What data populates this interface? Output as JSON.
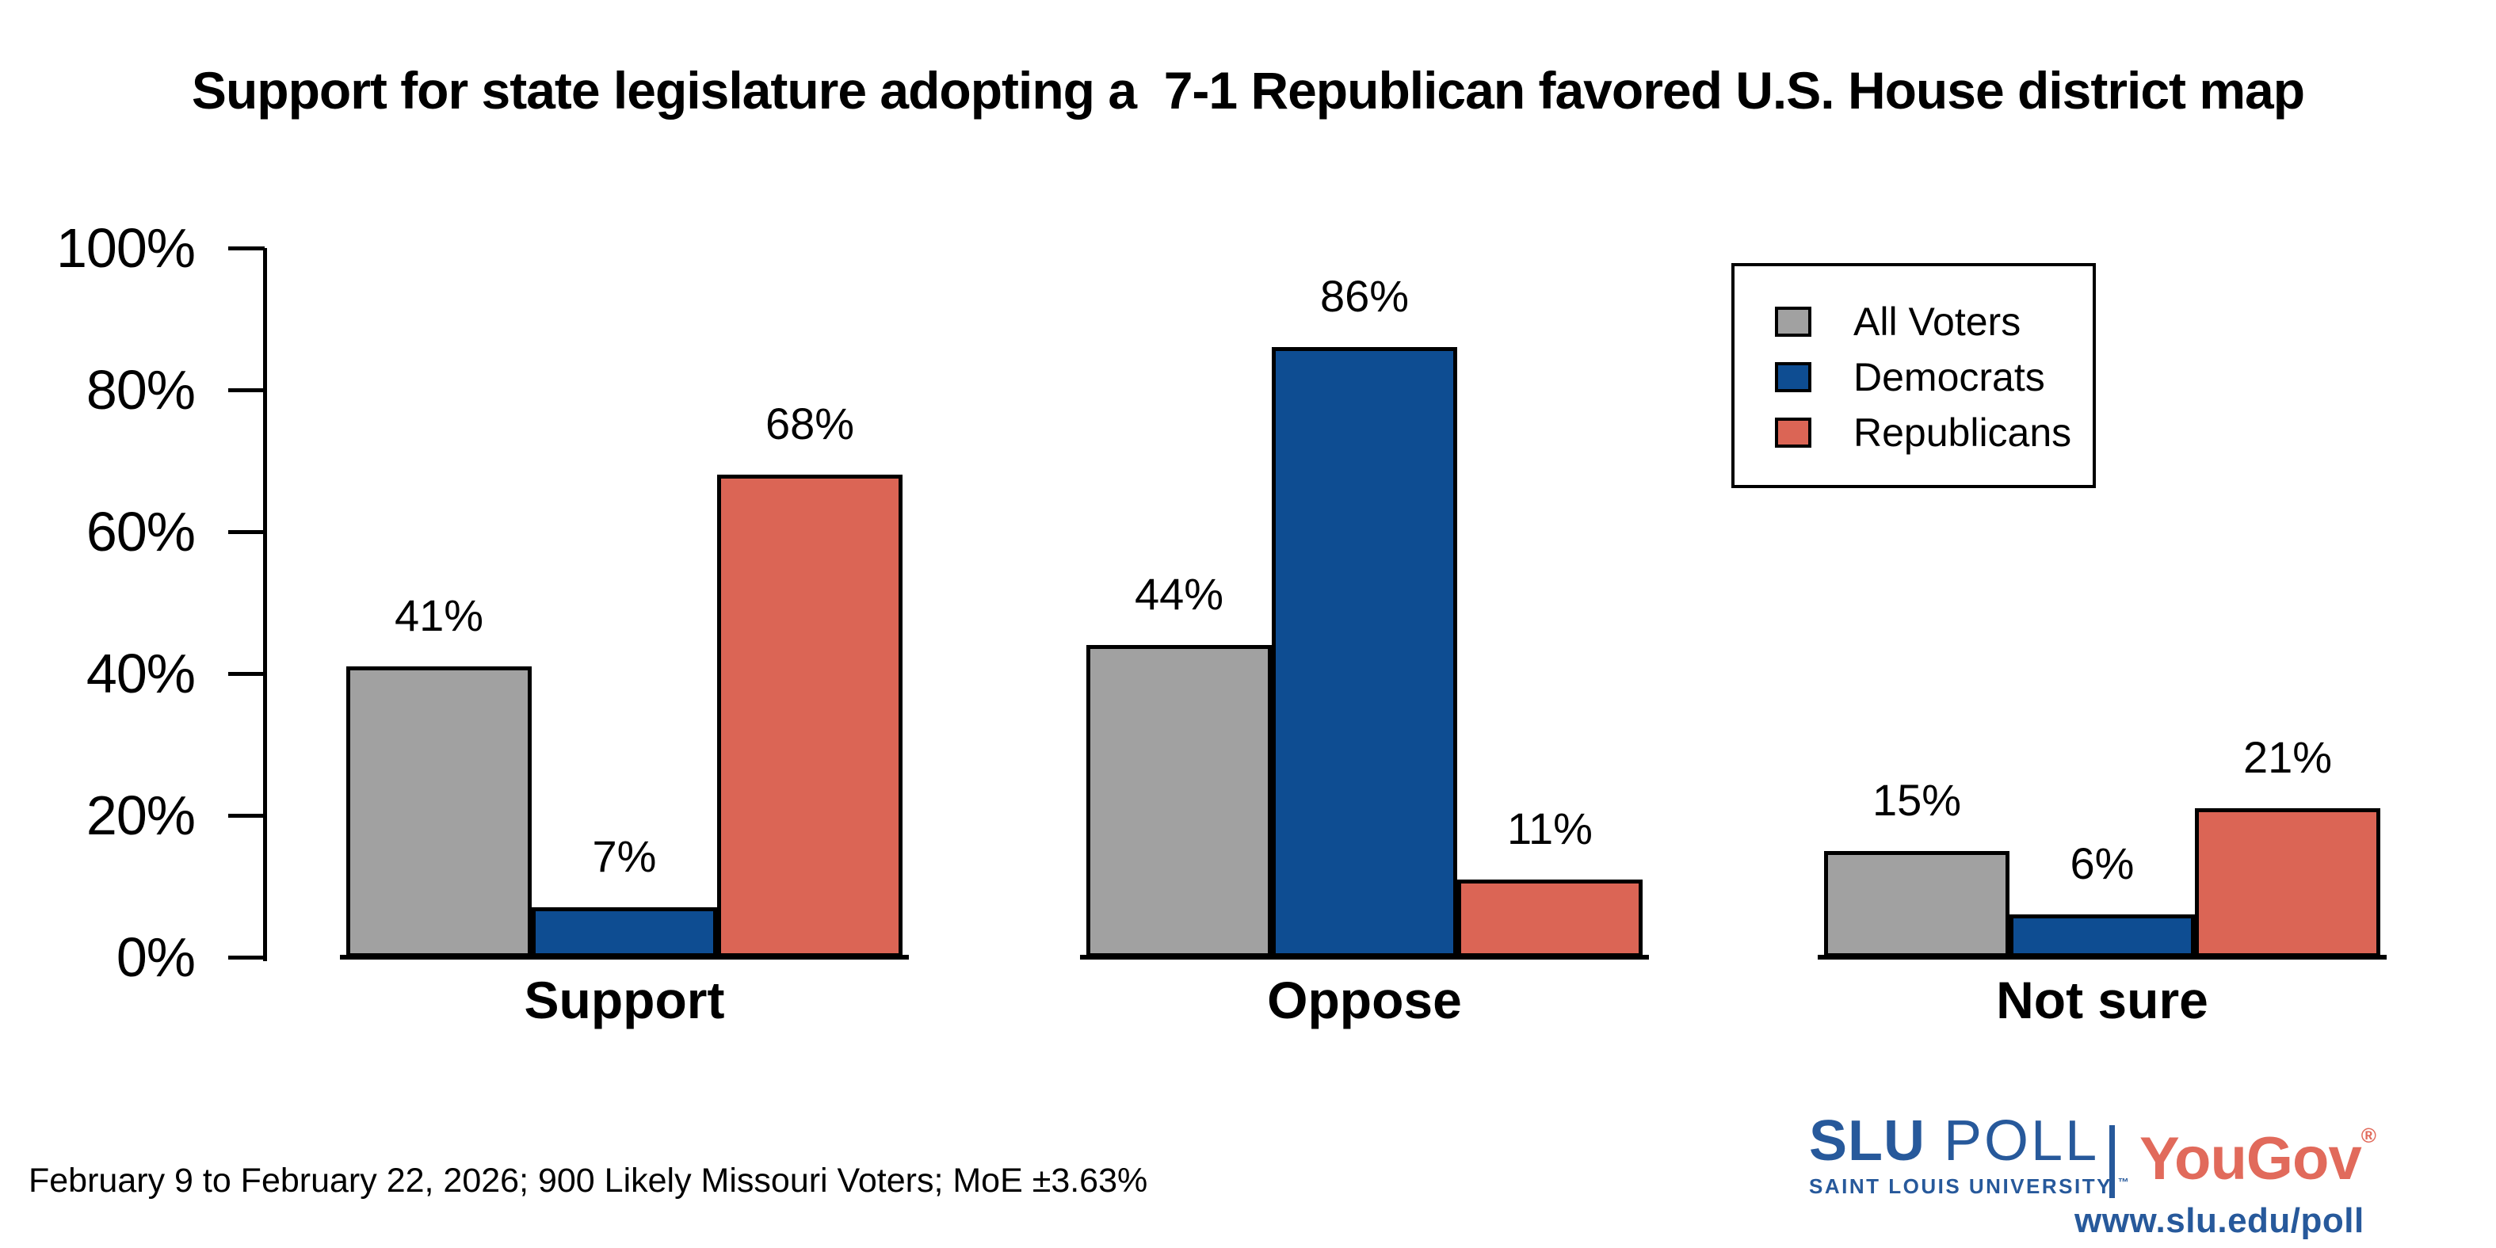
{
  "title": "Support for state legislature adopting a  7-1 Republican favored U.S. House district map",
  "chart_data": {
    "type": "bar",
    "title": "Support for state legislature adopting a  7-1 Republican favored U.S. House district map",
    "categories": [
      "Support",
      "Oppose",
      "Not sure"
    ],
    "series": [
      {
        "name": "All Voters",
        "color": "#a1a1a1",
        "values": [
          41,
          44,
          15
        ]
      },
      {
        "name": "Democrats",
        "color": "#0e4d92",
        "values": [
          7,
          86,
          6
        ]
      },
      {
        "name": "Republicans",
        "color": "#db6555",
        "values": [
          68,
          11,
          21
        ]
      }
    ],
    "value_labels": [
      [
        "41%",
        "44%",
        "15%"
      ],
      [
        "7%",
        "86%",
        "6%"
      ],
      [
        "68%",
        "11%",
        "21%"
      ]
    ],
    "xlabel": "",
    "ylabel": "",
    "ylim": [
      0,
      100
    ],
    "yticks": [
      0,
      20,
      40,
      60,
      80,
      100
    ],
    "ytick_labels": [
      "0%",
      "20%",
      "40%",
      "60%",
      "80%",
      "100%"
    ],
    "grid": false,
    "bar_border_color": "#000000",
    "legend_position": "top-right"
  },
  "legend": {
    "entries": [
      "All Voters",
      "Democrats",
      "Republicans"
    ]
  },
  "footer": "February 9 to February 22, 2026; 900 Likely Missouri Voters; MoE ±3.63%",
  "branding": {
    "slu_name": "SLU",
    "slu_suffix": "POLL",
    "slu_subtitle": "SAINT LOUIS UNIVERSITY.",
    "slu_trademark": "™",
    "slu_color": "#27599b",
    "separator_color": "#27599b",
    "yougov_name": "YouGov",
    "yougov_registered": "®",
    "yougov_color": "#e16a5b",
    "url": "www.slu.edu/poll"
  }
}
